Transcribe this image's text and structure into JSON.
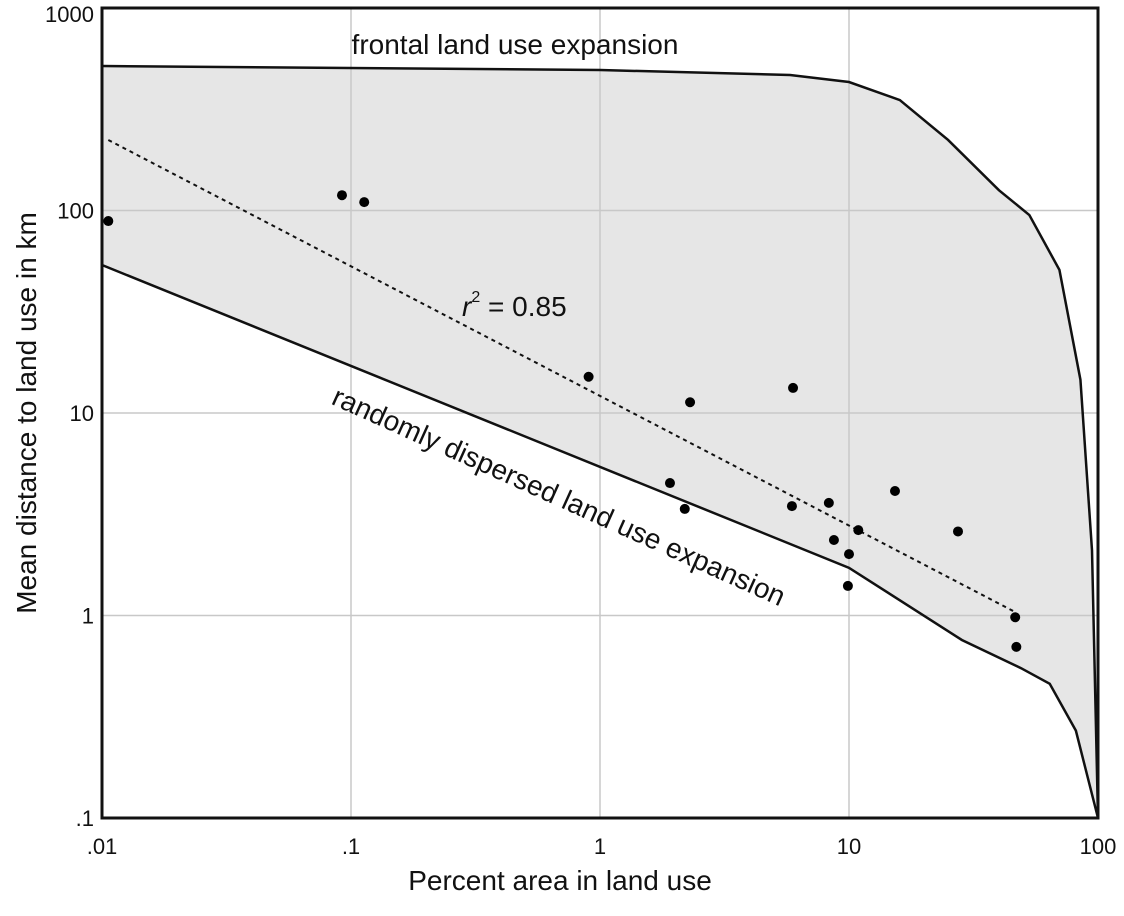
{
  "chart_data": {
    "type": "scatter",
    "xlabel": "Percent area in land use",
    "ylabel": "Mean distance to land use in km",
    "log_x": true,
    "log_y": true,
    "grid": true,
    "xlim": [
      0.01,
      100
    ],
    "ylim": [
      0.1,
      1000
    ],
    "xticks": [
      {
        "value": 0.01,
        "label": ".01"
      },
      {
        "value": 0.1,
        "label": ".1"
      },
      1,
      10,
      100
    ],
    "yticks": [
      {
        "value": 0.1,
        "label": ".1"
      },
      1,
      10,
      100,
      1000
    ],
    "fill_color": "#e6e6e6",
    "points": {
      "color": "#000000",
      "x": [
        0.0106,
        0.092,
        0.113,
        0.9,
        2.3,
        5.96,
        1.91,
        2.19,
        5.9,
        8.3,
        15.3,
        10.9,
        8.7,
        10.0,
        27.4,
        9.9,
        46.5,
        47
      ],
      "y": [
        88.7,
        119,
        110,
        15.1,
        11.3,
        13.3,
        4.51,
        3.36,
        3.47,
        3.6,
        4.12,
        2.64,
        2.36,
        2.01,
        2.6,
        1.4,
        0.98,
        0.7
      ]
    },
    "boundaries": [
      {
        "label": "frontal land use expansion",
        "x": [
          0.01,
          1,
          5.8,
          10,
          16,
          25,
          40,
          53,
          70,
          85,
          94.6,
          100
        ],
        "y": [
          517,
          494,
          467,
          431,
          351,
          223,
          126,
          95,
          50.9,
          14.6,
          2.1,
          0.1
        ]
      },
      {
        "label": "randomly dispersed land use expansion",
        "x": [
          0.01,
          10,
          28.4,
          49,
          64,
          81.5,
          100
        ],
        "y": [
          53.8,
          1.72,
          0.757,
          0.55,
          0.46,
          0.27,
          0.1
        ]
      }
    ],
    "fit": {
      "x": [
        0.0106,
        46.5
      ],
      "y": [
        223,
        1.04
      ],
      "annotation": {
        "symbol": "r",
        "exponent": "2",
        "text": " = 0.85"
      }
    }
  }
}
